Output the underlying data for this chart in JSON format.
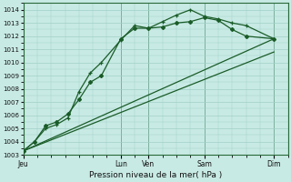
{
  "xlabel": "Pression niveau de la mer( hPa )",
  "ylim": [
    1003,
    1014.5
  ],
  "yticks": [
    1003,
    1004,
    1005,
    1006,
    1007,
    1008,
    1009,
    1010,
    1011,
    1012,
    1013,
    1014
  ],
  "bg_color": "#c8eae4",
  "grid_color": "#a0cfc8",
  "line_color": "#1a5c28",
  "day_labels": [
    "Jeu",
    "Lun",
    "Ven",
    "Sam",
    "Dim"
  ],
  "day_positions": [
    0.0,
    3.5,
    4.5,
    6.5,
    9.0
  ],
  "xlim": [
    0,
    9.5
  ],
  "series1_x": [
    0,
    0.4,
    0.8,
    1.2,
    1.6,
    2.0,
    2.4,
    2.8,
    3.5,
    4.0,
    4.5,
    5.0,
    5.5,
    6.0,
    6.5,
    7.0,
    7.5,
    8.0,
    9.0
  ],
  "series1_y": [
    1003.3,
    1004.0,
    1005.2,
    1005.5,
    1006.1,
    1007.2,
    1008.5,
    1009.0,
    1011.8,
    1012.6,
    1012.6,
    1012.7,
    1013.0,
    1013.1,
    1013.4,
    1013.2,
    1012.5,
    1012.0,
    1011.8
  ],
  "series2_x": [
    0,
    0.4,
    0.8,
    1.2,
    1.6,
    2.0,
    2.4,
    2.8,
    3.5,
    4.0,
    4.5,
    5.0,
    5.5,
    6.0,
    6.5,
    7.0,
    7.5,
    8.0,
    9.0
  ],
  "series2_y": [
    1003.3,
    1004.0,
    1005.0,
    1005.3,
    1005.8,
    1007.8,
    1009.2,
    1010.0,
    1011.7,
    1012.8,
    1012.6,
    1013.1,
    1013.6,
    1014.0,
    1013.5,
    1013.3,
    1013.0,
    1012.8,
    1011.8
  ],
  "series3_x": [
    0,
    9.0
  ],
  "series3_y": [
    1003.3,
    1011.8
  ]
}
